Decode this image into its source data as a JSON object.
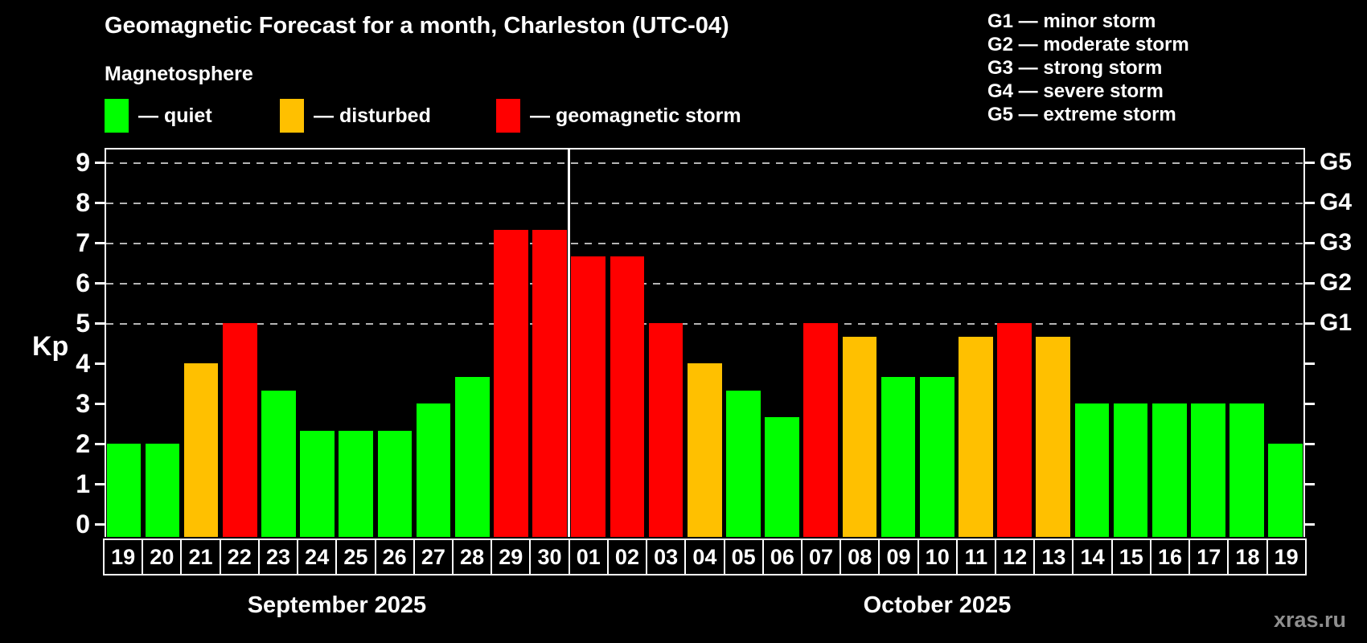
{
  "title": "Geomagnetic Forecast for a month, Charleston (UTC-04)",
  "subtitle": "Magnetosphere",
  "legend": {
    "items": [
      {
        "key": "quiet",
        "label": "— quiet",
        "color": "#00ff00"
      },
      {
        "key": "disturbed",
        "label": "— disturbed",
        "color": "#ffc000"
      },
      {
        "key": "storm",
        "label": "— geomagnetic storm",
        "color": "#ff0000"
      }
    ]
  },
  "storm_scale_legend": [
    "G1 — minor storm",
    "G2 — moderate storm",
    "G3 — strong storm",
    "G4 — severe storm",
    "G5 — extreme storm"
  ],
  "watermark": "xras.ru",
  "chart_data": {
    "type": "bar",
    "title": "Geomagnetic Forecast for a month, Charleston (UTC-04)",
    "ylabel": "Kp",
    "ylim": [
      0,
      9
    ],
    "y_ticks": [
      0,
      1,
      2,
      3,
      4,
      5,
      6,
      7,
      8,
      9
    ],
    "gridlines_at": [
      5,
      6,
      7,
      8,
      9
    ],
    "right_axis_labels": [
      {
        "value": 5,
        "label": "G1"
      },
      {
        "value": 6,
        "label": "G2"
      },
      {
        "value": 7,
        "label": "G3"
      },
      {
        "value": 8,
        "label": "G4"
      },
      {
        "value": 9,
        "label": "G5"
      }
    ],
    "categories": [
      "19",
      "20",
      "21",
      "22",
      "23",
      "24",
      "25",
      "26",
      "27",
      "28",
      "29",
      "30",
      "01",
      "02",
      "03",
      "04",
      "05",
      "06",
      "07",
      "08",
      "09",
      "10",
      "11",
      "12",
      "13",
      "14",
      "15",
      "16",
      "17",
      "18",
      "19"
    ],
    "values": [
      2,
      2,
      4,
      5,
      3.33,
      2.33,
      2.33,
      2.33,
      3,
      3.67,
      7.33,
      7.33,
      6.67,
      6.67,
      5,
      4,
      3.33,
      2.67,
      5,
      4.67,
      3.67,
      3.67,
      4.67,
      5,
      4.67,
      3,
      3,
      3,
      3,
      3,
      2
    ],
    "statuses": [
      "quiet",
      "quiet",
      "disturbed",
      "storm",
      "quiet",
      "quiet",
      "quiet",
      "quiet",
      "quiet",
      "quiet",
      "storm",
      "storm",
      "storm",
      "storm",
      "storm",
      "disturbed",
      "quiet",
      "quiet",
      "storm",
      "disturbed",
      "quiet",
      "quiet",
      "disturbed",
      "storm",
      "disturbed",
      "quiet",
      "quiet",
      "quiet",
      "quiet",
      "quiet",
      "quiet"
    ],
    "status_colors": {
      "quiet": "#00ff00",
      "disturbed": "#ffc000",
      "storm": "#ff0000"
    },
    "months": [
      {
        "label": "September 2025",
        "count": 12
      },
      {
        "label": "October 2025",
        "count": 19
      }
    ],
    "legend_position": "top",
    "grid": "dashed horizontal at storm levels only"
  }
}
